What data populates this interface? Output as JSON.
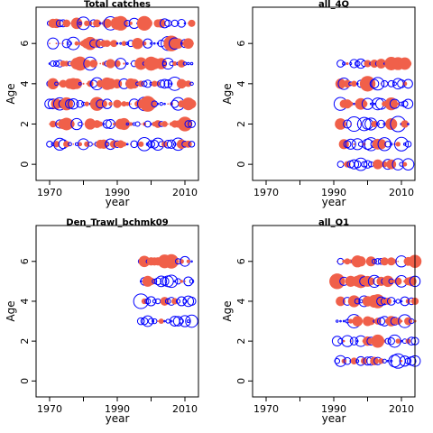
{
  "chart_data": [
    {
      "type": "scatter",
      "title": "Total catches",
      "xlabel": "year",
      "ylabel": "Age",
      "xlim": [
        1966,
        2014
      ],
      "ylim": [
        -0.8,
        7.8
      ],
      "xticks": [
        1970,
        1990,
        2010
      ],
      "xticks_minor": [
        1980,
        2000
      ],
      "yticks": [
        0,
        2,
        4,
        6
      ],
      "grid": false,
      "year_range": [
        1970,
        2012
      ],
      "ages": [
        1,
        2,
        3,
        4,
        5,
        6,
        7
      ],
      "max_size": 9,
      "seed": 11
    },
    {
      "type": "scatter",
      "title": "all_4Q",
      "xlabel": "year",
      "ylabel": "Age",
      "xlim": [
        1966,
        2014
      ],
      "ylim": [
        -0.8,
        7.8
      ],
      "xticks": [
        1970,
        1990,
        2010
      ],
      "xticks_minor": [
        1980,
        2000
      ],
      "yticks": [
        0,
        2,
        4,
        6
      ],
      "grid": false,
      "year_range": [
        1992,
        2012
      ],
      "ages": [
        0,
        1,
        2,
        3,
        4,
        5
      ],
      "max_size": 9,
      "seed": 23
    },
    {
      "type": "scatter",
      "title": "Den_Trawl_bchmk09",
      "xlabel": "year",
      "ylabel": "Age",
      "xlim": [
        1966,
        2014
      ],
      "ylim": [
        -0.8,
        7.8
      ],
      "xticks": [
        1970,
        1990,
        2010
      ],
      "xticks_minor": [
        1980,
        2000
      ],
      "yticks": [
        0,
        2,
        4,
        6
      ],
      "grid": false,
      "year_range": [
        1997,
        2012
      ],
      "ages": [
        3,
        4,
        5,
        6
      ],
      "max_size": 9,
      "seed": 37
    },
    {
      "type": "scatter",
      "title": "all_Q1",
      "xlabel": "year",
      "ylabel": "Age",
      "xlim": [
        1966,
        2014
      ],
      "ylim": [
        -0.8,
        7.8
      ],
      "xticks": [
        1970,
        1990,
        2010
      ],
      "xticks_minor": [
        1980,
        2000
      ],
      "yticks": [
        0,
        2,
        4,
        6
      ],
      "grid": false,
      "year_range": [
        1991,
        2014
      ],
      "ages": [
        1,
        2,
        3,
        4,
        5,
        6
      ],
      "max_size": 9,
      "seed": 53
    }
  ],
  "colors": {
    "positive_fill": "#f0604a",
    "negative_stroke": "#0000ff",
    "axis": "#000000"
  }
}
